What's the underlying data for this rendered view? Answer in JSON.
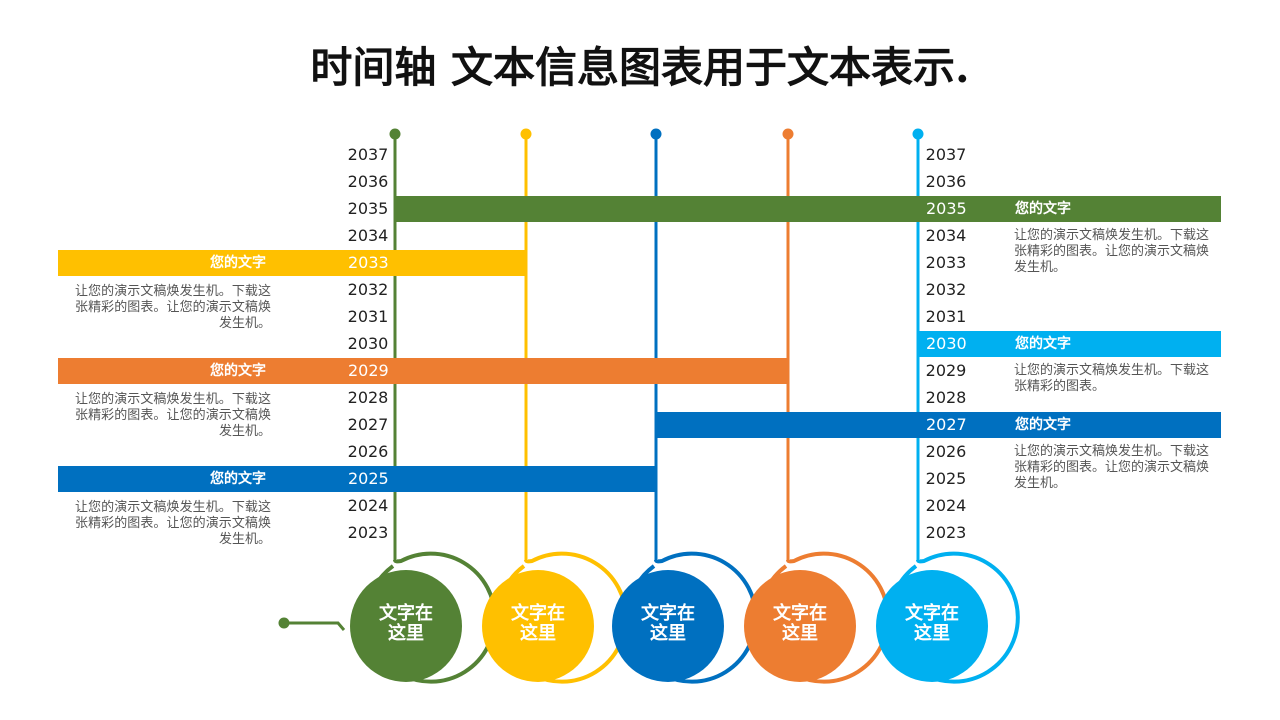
{
  "title": "时间轴 文本信息图表用于文本表示.",
  "years": [
    "2037",
    "2036",
    "2035",
    "2034",
    "2033",
    "2032",
    "2031",
    "2030",
    "2029",
    "2028",
    "2027",
    "2026",
    "2025",
    "2024",
    "2023"
  ],
  "colors": {
    "green": "#548235",
    "yellow": "#FFC000",
    "blue": "#0070C0",
    "orange": "#ED7D31",
    "lightblue": "#00B0F0"
  },
  "circles": [
    {
      "label": "文字在\n这里",
      "color": "#548235"
    },
    {
      "label": "文字在\n这里",
      "color": "#FFC000"
    },
    {
      "label": "文字在\n这里",
      "color": "#0070C0"
    },
    {
      "label": "文字在\n这里",
      "color": "#ED7D31"
    },
    {
      "label": "文字在\n这里",
      "color": "#00B0F0"
    }
  ],
  "bars": [
    {
      "side": "left",
      "label": "您的文字",
      "year": "2033",
      "color": "#FFC000",
      "desc": "让您的演示文稿焕发生机。下载这张精彩的图表。让您的演示文稿焕发生机。"
    },
    {
      "side": "left",
      "label": "您的文字",
      "year": "2029",
      "color": "#ED7D31",
      "desc": "让您的演示文稿焕发生机。下载这张精彩的图表。让您的演示文稿焕发生机。"
    },
    {
      "side": "left",
      "label": "您的文字",
      "year": "2025",
      "color": "#0070C0",
      "desc": "让您的演示文稿焕发生机。下载这张精彩的图表。让您的演示文稿焕发生机。"
    },
    {
      "side": "right",
      "label": "您的文字",
      "year": "2035",
      "color": "#548235",
      "desc": "让您的演示文稿焕发生机。下载这张精彩的图表。让您的演示文稿焕发生机。"
    },
    {
      "side": "right",
      "label": "您的文字",
      "year": "2030",
      "color": "#00B0F0",
      "desc": "让您的演示文稿焕发生机。下载这张精彩的图表。"
    },
    {
      "side": "right",
      "label": "您的文字",
      "year": "2027",
      "color": "#0070C0",
      "desc": "让您的演示文稿焕发生机。下载这张精彩的图表。让您的演示文稿焕发生机。"
    }
  ]
}
